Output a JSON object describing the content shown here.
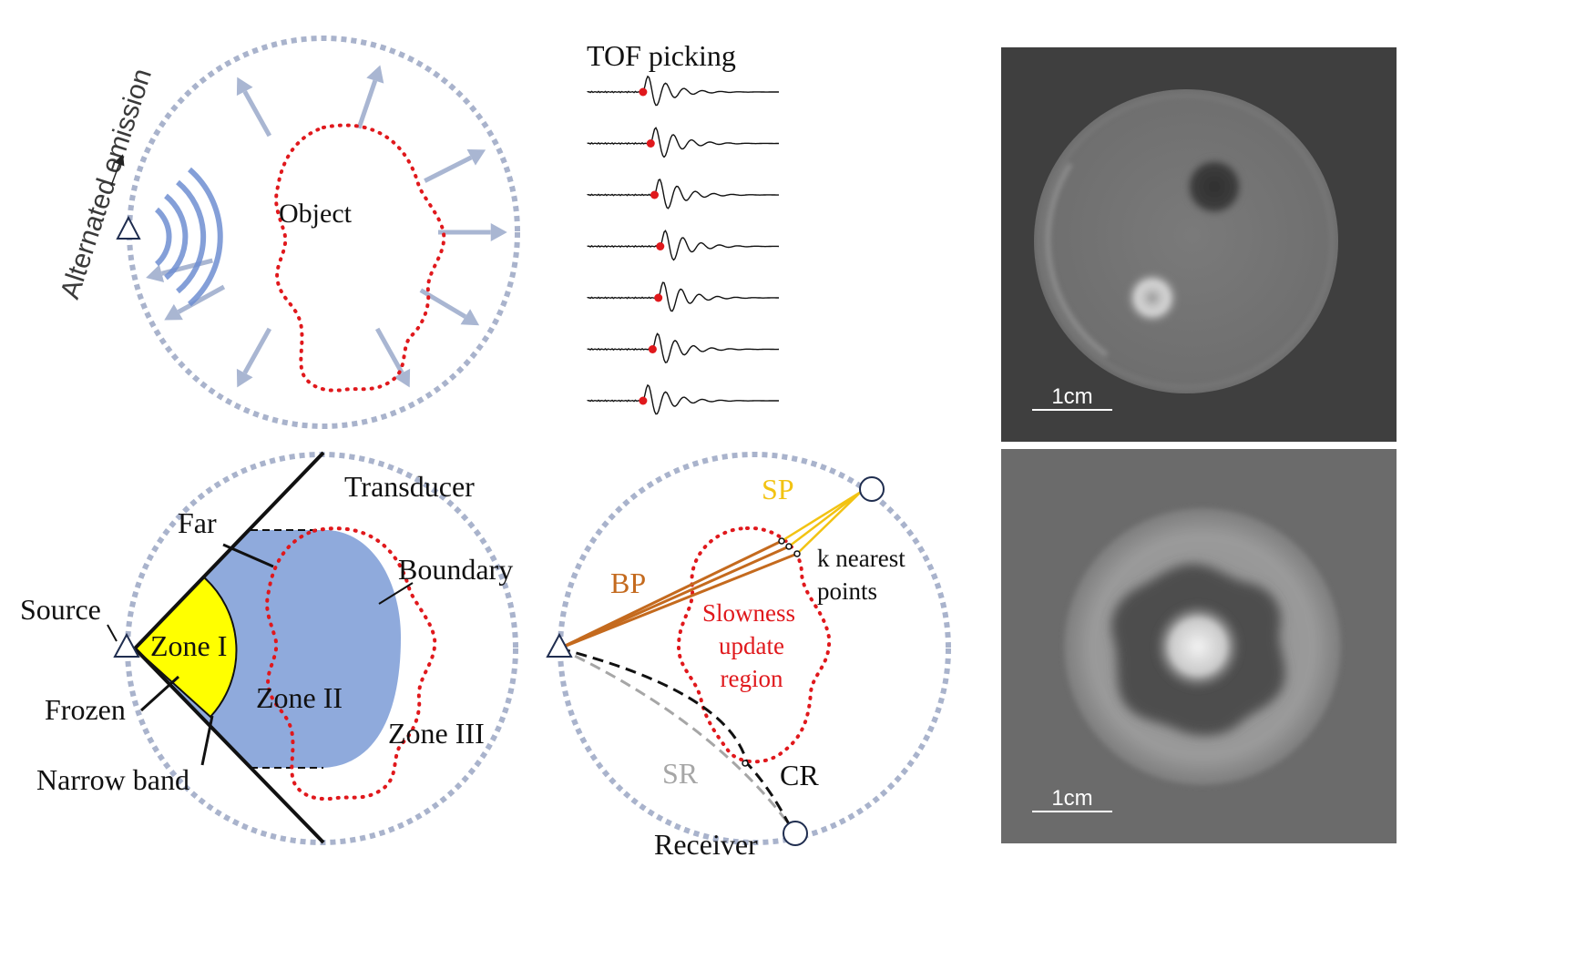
{
  "colors": {
    "ring": "#a9b3cc",
    "boundary": "#e0181c",
    "zone_fill": "#8faadc",
    "zone1_fill": "#ffff00",
    "arrow": "#a9b6d2",
    "wave": "#6f8fd2",
    "sp": "#f2c313",
    "bp": "#c46a1e",
    "sr": "#a6a6a6",
    "slowness_text": "#e0181c",
    "panel1_bg": "#3f3f3f",
    "panel2_bg": "#6b6b6b"
  },
  "panel_a": {
    "emission_label": "Alternated emission",
    "object_label": "Object"
  },
  "panel_b": {
    "title": "TOF picking",
    "trace_count": 7,
    "pick_offsets": [
      0.29,
      0.33,
      0.35,
      0.38,
      0.37,
      0.34,
      0.29
    ]
  },
  "panel_c": {
    "transducer_label": "Transducer",
    "far_label": "Far",
    "boundary_label": "Boundary",
    "source_label": "Source",
    "zone1_label": "Zone I",
    "zone2_label": "Zone II",
    "zone3_label": "Zone III",
    "frozen_label": "Frozen",
    "narrow_band_label": "Narrow band"
  },
  "panel_d": {
    "sp_label": "SP",
    "bp_label": "BP",
    "k_nearest_label_line1": "k nearest",
    "k_nearest_label_line2": "points",
    "slowness_line1": "Slowness",
    "slowness_line2": "update",
    "slowness_line3": "region",
    "sr_label": "SR",
    "cr_label": "CR",
    "receiver_label": "Receiver"
  },
  "recon_top": {
    "scale_label": "1cm"
  },
  "recon_bottom": {
    "scale_label": "1cm"
  }
}
